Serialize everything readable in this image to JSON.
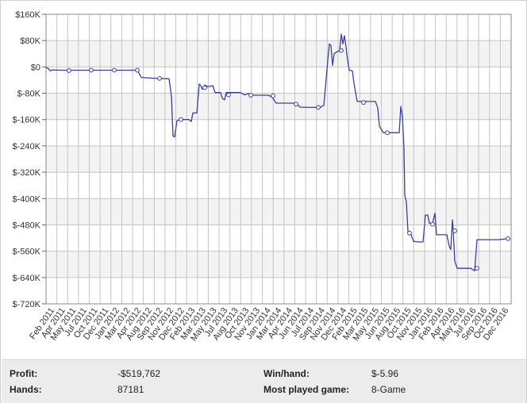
{
  "chart_data": {
    "type": "line",
    "ylim": [
      -720000,
      160000
    ],
    "y_ticks": [
      {
        "value": 160000,
        "label": "$160K"
      },
      {
        "value": 80000,
        "label": "$80K"
      },
      {
        "value": 0,
        "label": "$0"
      },
      {
        "value": -80000,
        "label": "$-80K"
      },
      {
        "value": -160000,
        "label": "$-160K"
      },
      {
        "value": -240000,
        "label": "$-240K"
      },
      {
        "value": -320000,
        "label": "$-320K"
      },
      {
        "value": -400000,
        "label": "$-400K"
      },
      {
        "value": -480000,
        "label": "$-480K"
      },
      {
        "value": -560000,
        "label": "$-560K"
      },
      {
        "value": -640000,
        "label": "$-640K"
      },
      {
        "value": -720000,
        "label": "$-720K"
      }
    ],
    "x_labels": [
      "Feb 2011",
      "Apr 2011",
      "May 2011",
      "Jul 2011",
      "Oct 2011",
      "Dec 2011",
      "Jan 2012",
      "Mar 2012",
      "Apr 2012",
      "Aug 2012",
      "Sep 2012",
      "Nov 2012",
      "Dec 2012",
      "Feb 2013",
      "Mar 2013",
      "May 2013",
      "Jul 2013",
      "Aug 2013",
      "Oct 2013",
      "Nov 2013",
      "Jan 2014",
      "Mar 2014",
      "Apr 2014",
      "Jun 2014",
      "Jul 2014",
      "Sep 2014",
      "Nov 2014",
      "Dec 2014",
      "Feb 2015",
      "Mar 2015",
      "May 2015",
      "Jun 2015",
      "Aug 2015",
      "Oct 2015",
      "Nov 2015",
      "Jan 2016",
      "Feb 2016",
      "Apr 2016",
      "May 2016",
      "Jul 2016",
      "Sep 2016",
      "Oct 2016",
      "Dec 2016"
    ],
    "grid": true,
    "line_color": "#3b3f9a",
    "series": [
      {
        "points": [
          [
            0,
            0
          ],
          [
            1,
            -3000
          ],
          [
            3,
            -5000
          ],
          [
            5,
            -12000
          ],
          [
            8,
            -9000
          ],
          [
            20,
            -10000
          ],
          [
            40,
            -10000
          ],
          [
            60,
            -10000
          ],
          [
            80,
            -10000
          ],
          [
            100,
            -10000
          ],
          [
            115,
            -10000
          ],
          [
            120,
            -32000
          ],
          [
            140,
            -35000
          ],
          [
            155,
            -36000
          ],
          [
            158,
            -90000
          ],
          [
            160,
            -210000
          ],
          [
            162,
            -213000
          ],
          [
            165,
            -163000
          ],
          [
            170,
            -160000
          ],
          [
            180,
            -160000
          ],
          [
            183,
            -166000
          ],
          [
            185,
            -140000
          ],
          [
            190,
            -140000
          ],
          [
            193,
            -52000
          ],
          [
            195,
            -57000
          ],
          [
            197,
            -68000
          ],
          [
            200,
            -55000
          ],
          [
            204,
            -60000
          ],
          [
            210,
            -57000
          ],
          [
            213,
            -78000
          ],
          [
            220,
            -78000
          ],
          [
            222,
            -95000
          ],
          [
            225,
            -100000
          ],
          [
            227,
            -78000
          ],
          [
            235,
            -78000
          ],
          [
            245,
            -78000
          ],
          [
            250,
            -85000
          ],
          [
            255,
            -81000
          ],
          [
            260,
            -86000
          ],
          [
            270,
            -86000
          ],
          [
            280,
            -86000
          ],
          [
            285,
            -92000
          ],
          [
            290,
            -110000
          ],
          [
            305,
            -110000
          ],
          [
            315,
            -110000
          ],
          [
            320,
            -122000
          ],
          [
            330,
            -123000
          ],
          [
            345,
            -123000
          ],
          [
            350,
            -117000
          ],
          [
            355,
            20000
          ],
          [
            357,
            70000
          ],
          [
            359,
            65000
          ],
          [
            361,
            5000
          ],
          [
            363,
            40000
          ],
          [
            366,
            45000
          ],
          [
            370,
            50000
          ],
          [
            372,
            100000
          ],
          [
            374,
            70000
          ],
          [
            376,
            95000
          ],
          [
            378,
            60000
          ],
          [
            380,
            20000
          ],
          [
            382,
            -10000
          ],
          [
            386,
            -12000
          ],
          [
            388,
            -50000
          ],
          [
            392,
            -105000
          ],
          [
            400,
            -105000
          ],
          [
            415,
            -105000
          ],
          [
            418,
            -125000
          ],
          [
            420,
            -180000
          ],
          [
            425,
            -200000
          ],
          [
            440,
            -200000
          ],
          [
            445,
            -200000
          ],
          [
            447,
            -120000
          ],
          [
            449,
            -150000
          ],
          [
            451,
            -250000
          ],
          [
            452,
            -390000
          ],
          [
            454,
            -410000
          ],
          [
            456,
            -500000
          ],
          [
            458,
            -505000
          ],
          [
            460,
            -510000
          ],
          [
            463,
            -530000
          ],
          [
            470,
            -532000
          ],
          [
            475,
            -532000
          ],
          [
            478,
            -450000
          ],
          [
            481,
            -450000
          ],
          [
            483,
            -475000
          ],
          [
            487,
            -475000
          ],
          [
            490,
            -445000
          ],
          [
            492,
            -510000
          ],
          [
            500,
            -510000
          ],
          [
            505,
            -510000
          ],
          [
            508,
            -545000
          ],
          [
            510,
            -555000
          ],
          [
            512,
            -465000
          ],
          [
            513,
            -495000
          ],
          [
            515,
            -590000
          ],
          [
            518,
            -612000
          ],
          [
            525,
            -612000
          ],
          [
            535,
            -612000
          ],
          [
            540,
            -620000
          ],
          [
            543,
            -525000
          ],
          [
            555,
            -525000
          ],
          [
            570,
            -525000
          ],
          [
            582,
            -522000
          ]
        ],
        "markers": [
          [
            29,
            -11000
          ],
          [
            57,
            -10000
          ],
          [
            86,
            -10000
          ],
          [
            115,
            -10000
          ],
          [
            143,
            -35000
          ],
          [
            170,
            -160000
          ],
          [
            200,
            -63000
          ],
          [
            230,
            -85000
          ],
          [
            258,
            -86000
          ],
          [
            286,
            -88000
          ],
          [
            315,
            -113000
          ],
          [
            343,
            -123000
          ],
          [
            372,
            50000
          ],
          [
            400,
            -108000
          ],
          [
            430,
            -200000
          ],
          [
            458,
            -505000
          ],
          [
            487,
            -478000
          ],
          [
            515,
            -498000
          ],
          [
            543,
            -612000
          ],
          [
            582,
            -522000
          ]
        ]
      }
    ]
  },
  "stats": {
    "profit_label": "Profit:",
    "profit_value": "-$519,762",
    "winhand_label": "Win/hand:",
    "winhand_value": "$-5.96",
    "hands_label": "Hands:",
    "hands_value": "87181",
    "game_label": "Most played game:",
    "game_value": "8-Game"
  }
}
